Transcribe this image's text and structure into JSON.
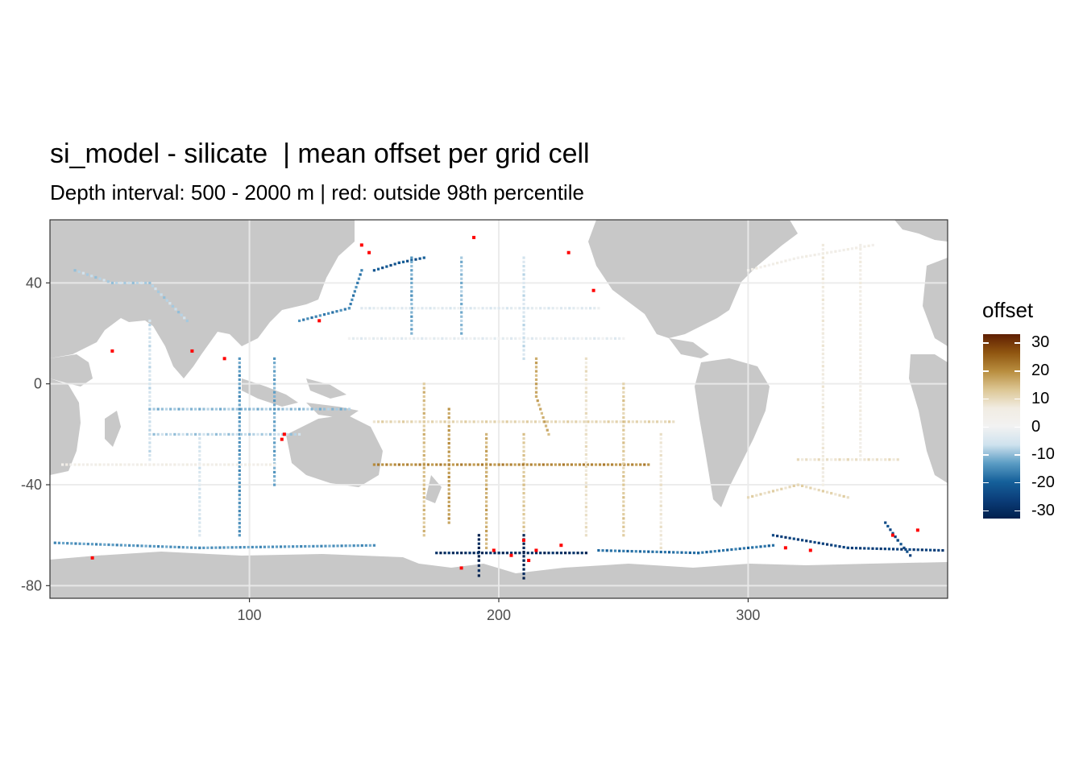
{
  "title": "si_model - silicate  | mean offset per grid cell",
  "subtitle": "Depth interval: 500 - 2000 m | red: outside 98th percentile",
  "colors": {
    "land": "#c8c8c8",
    "ocean": "#ffffff",
    "grid": "#ebebeb",
    "outlier": "#ff0000",
    "panel_border": "#333333"
  },
  "chart_data": {
    "type": "heatmap",
    "title": "si_model - silicate  | mean offset per grid cell",
    "subtitle": "Depth interval: 500 - 2000 m | red: outside 98th percentile",
    "xlabel": "",
    "ylabel": "",
    "xlim": [
      20,
      380
    ],
    "ylim": [
      -85,
      65
    ],
    "x_ticks": [
      100,
      200,
      300
    ],
    "y_ticks": [
      40,
      0,
      -40,
      -80
    ],
    "grid": true,
    "legend": {
      "title": "offset",
      "position": "right",
      "ticks": [
        30,
        20,
        10,
        0,
        -10,
        -20,
        -30
      ],
      "range": [
        -33,
        33
      ],
      "palette": [
        "#00204d",
        "#0b3d79",
        "#15609a",
        "#5b9cc4",
        "#cfe2ee",
        "#f2f2f2",
        "#f1ece2",
        "#dcc693",
        "#b88d3e",
        "#8f5510",
        "#5f1e02"
      ]
    },
    "tracks": [
      {
        "lon": [
          30,
          45,
          60,
          75
        ],
        "lat": [
          45,
          40,
          40,
          25
        ],
        "offset": -8
      },
      {
        "lon": [
          60,
          60,
          60
        ],
        "lat": [
          25,
          0,
          -30
        ],
        "offset": -6
      },
      {
        "lon": [
          60,
          100,
          140
        ],
        "lat": [
          -10,
          -10,
          -10
        ],
        "offset": -10
      },
      {
        "lon": [
          80,
          80,
          80
        ],
        "lat": [
          -20,
          -40,
          -60
        ],
        "offset": -5
      },
      {
        "lon": [
          96,
          96,
          96
        ],
        "lat": [
          10,
          -20,
          -60
        ],
        "offset": -14
      },
      {
        "lon": [
          110,
          110,
          110
        ],
        "lat": [
          10,
          -10,
          -40
        ],
        "offset": -12
      },
      {
        "lon": [
          60,
          90,
          120
        ],
        "lat": [
          -20,
          -20,
          -20
        ],
        "offset": -8
      },
      {
        "lon": [
          25,
          60,
          110
        ],
        "lat": [
          -32,
          -32,
          -32
        ],
        "offset": 4
      },
      {
        "lon": [
          120,
          140,
          145
        ],
        "lat": [
          25,
          30,
          45
        ],
        "offset": -16
      },
      {
        "lon": [
          150,
          160,
          170
        ],
        "lat": [
          45,
          48,
          50
        ],
        "offset": -22
      },
      {
        "lon": [
          165,
          165,
          165
        ],
        "lat": [
          50,
          35,
          20
        ],
        "offset": -12
      },
      {
        "lon": [
          185,
          185,
          185
        ],
        "lat": [
          50,
          30,
          20
        ],
        "offset": -10
      },
      {
        "lon": [
          145,
          200,
          240
        ],
        "lat": [
          30,
          30,
          30
        ],
        "offset": -3
      },
      {
        "lon": [
          140,
          200,
          250
        ],
        "lat": [
          18,
          18,
          18
        ],
        "offset": -2
      },
      {
        "lon": [
          210,
          210,
          210
        ],
        "lat": [
          50,
          30,
          10
        ],
        "offset": -6
      },
      {
        "lon": [
          170,
          170,
          170
        ],
        "lat": [
          0,
          -30,
          -60
        ],
        "offset": 14
      },
      {
        "lon": [
          180,
          180,
          180
        ],
        "lat": [
          -10,
          -32,
          -55
        ],
        "offset": 18
      },
      {
        "lon": [
          195,
          195,
          195
        ],
        "lat": [
          -20,
          -35,
          -65
        ],
        "offset": 16
      },
      {
        "lon": [
          210,
          210,
          210
        ],
        "lat": [
          -20,
          -40,
          -70
        ],
        "offset": 12
      },
      {
        "lon": [
          150,
          200,
          260
        ],
        "lat": [
          -32,
          -32,
          -32
        ],
        "offset": 20
      },
      {
        "lon": [
          150,
          200,
          270
        ],
        "lat": [
          -15,
          -15,
          -15
        ],
        "offset": 10
      },
      {
        "lon": [
          235,
          235,
          235
        ],
        "lat": [
          10,
          -20,
          -60
        ],
        "offset": 8
      },
      {
        "lon": [
          250,
          250,
          250
        ],
        "lat": [
          0,
          -30,
          -60
        ],
        "offset": 12
      },
      {
        "lon": [
          265,
          265,
          265
        ],
        "lat": [
          -20,
          -40,
          -65
        ],
        "offset": 7
      },
      {
        "lon": [
          215,
          215,
          220
        ],
        "lat": [
          10,
          -5,
          -20
        ],
        "offset": 16
      },
      {
        "lon": [
          300,
          320,
          350
        ],
        "lat": [
          45,
          50,
          55
        ],
        "offset": 4
      },
      {
        "lon": [
          330,
          330,
          330
        ],
        "lat": [
          55,
          20,
          -40
        ],
        "offset": 6
      },
      {
        "lon": [
          345,
          345,
          345
        ],
        "lat": [
          55,
          20,
          -30
        ],
        "offset": 5
      },
      {
        "lon": [
          320,
          340,
          360
        ],
        "lat": [
          -30,
          -30,
          -30
        ],
        "offset": 8
      },
      {
        "lon": [
          300,
          320,
          340
        ],
        "lat": [
          -45,
          -40,
          -45
        ],
        "offset": 10
      },
      {
        "lon": [
          22,
          80,
          150
        ],
        "lat": [
          -63,
          -65,
          -64
        ],
        "offset": -14
      },
      {
        "lon": [
          175,
          200,
          235
        ],
        "lat": [
          -67,
          -67,
          -67
        ],
        "offset": -30
      },
      {
        "lon": [
          240,
          280,
          310
        ],
        "lat": [
          -66,
          -67,
          -64
        ],
        "offset": -18
      },
      {
        "lon": [
          310,
          340,
          378
        ],
        "lat": [
          -60,
          -65,
          -66
        ],
        "offset": -26
      },
      {
        "lon": [
          355,
          360,
          365
        ],
        "lat": [
          -55,
          -62,
          -68
        ],
        "offset": -24
      },
      {
        "lon": [
          192,
          192,
          192
        ],
        "lat": [
          -60,
          -70,
          -76
        ],
        "offset": -32
      },
      {
        "lon": [
          210,
          210,
          210
        ],
        "lat": [
          -60,
          -70,
          -77
        ],
        "offset": -32
      }
    ],
    "outliers": [
      {
        "lon": 145,
        "lat": 55
      },
      {
        "lon": 148,
        "lat": 52
      },
      {
        "lon": 190,
        "lat": 58
      },
      {
        "lon": 228,
        "lat": 52
      },
      {
        "lon": 238,
        "lat": 37
      },
      {
        "lon": 128,
        "lat": 25
      },
      {
        "lon": 77,
        "lat": 13
      },
      {
        "lon": 45,
        "lat": 13
      },
      {
        "lon": 90,
        "lat": 10
      },
      {
        "lon": 114,
        "lat": -20
      },
      {
        "lon": 113,
        "lat": -22
      },
      {
        "lon": 198,
        "lat": -66
      },
      {
        "lon": 205,
        "lat": -68
      },
      {
        "lon": 210,
        "lat": -62
      },
      {
        "lon": 212,
        "lat": -70
      },
      {
        "lon": 215,
        "lat": -66
      },
      {
        "lon": 185,
        "lat": -73
      },
      {
        "lon": 37,
        "lat": -69
      },
      {
        "lon": 225,
        "lat": -64
      },
      {
        "lon": 358,
        "lat": -60
      },
      {
        "lon": 315,
        "lat": -65
      },
      {
        "lon": 368,
        "lat": -58
      },
      {
        "lon": 325,
        "lat": -66
      }
    ]
  }
}
